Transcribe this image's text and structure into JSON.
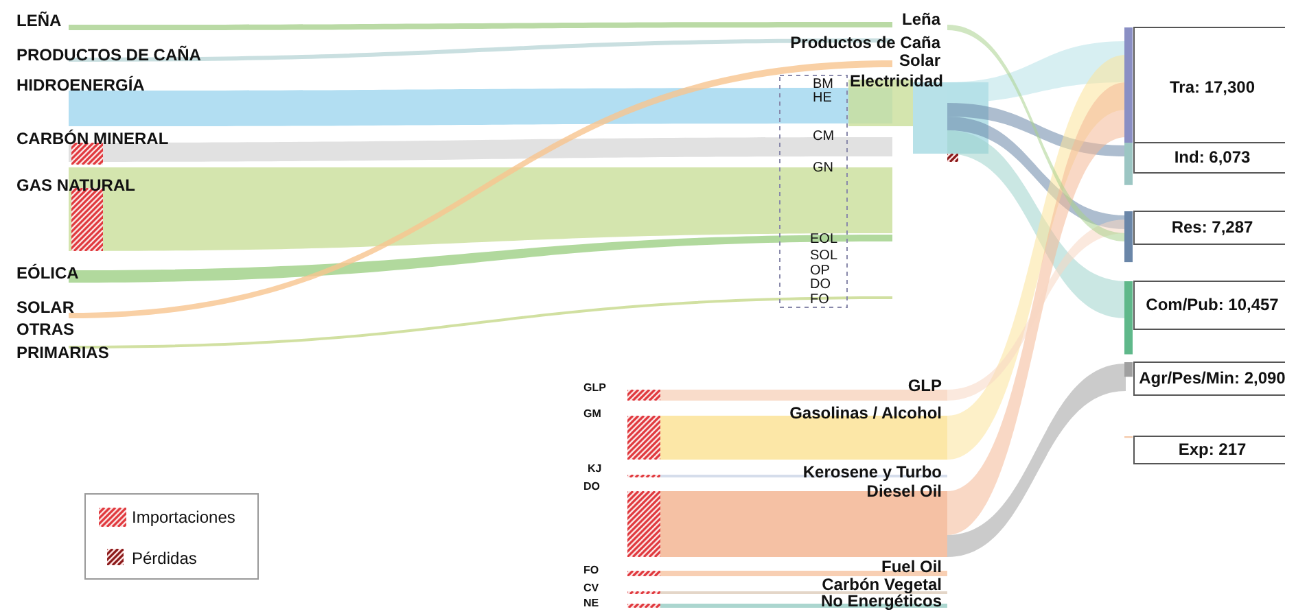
{
  "chart_data": {
    "type": "other",
    "values": [
      17300,
      6073,
      7287,
      10457,
      2090,
      217
    ],
    "value_labels": [
      "Tra: 17,300",
      "Ind: 6,073",
      "Res: 7,287",
      "Com/Pub: 10,457",
      "Agr/Pes/Min: 2,090",
      "Exp: 217"
    ],
    "annotations": [
      "LEÑA",
      "PRODUCTOS DE CAÑA",
      "HIDROENERGÍA",
      "CARBÓN MINERAL",
      "GAS NATURAL",
      "EÓLICA",
      "SOLAR",
      "OTRAS",
      "PRIMARIAS",
      "BM",
      "HE",
      "CM",
      "GN",
      "EOL",
      "SOL",
      "OP",
      "DO",
      "FO",
      "Leña",
      "Productos de Caña",
      "Solar",
      "Electricidad",
      "GLP",
      "GM",
      "KJ",
      "DO",
      "FO",
      "CV",
      "NE",
      "GLP",
      "Gasolinas / Alcohol",
      "Kerosene y Turbo",
      "Diesel Oil",
      "Fuel Oil",
      "Carbón Vegetal",
      "No Energéticos",
      "Importaciones",
      "Pérdidas"
    ]
  }
}
